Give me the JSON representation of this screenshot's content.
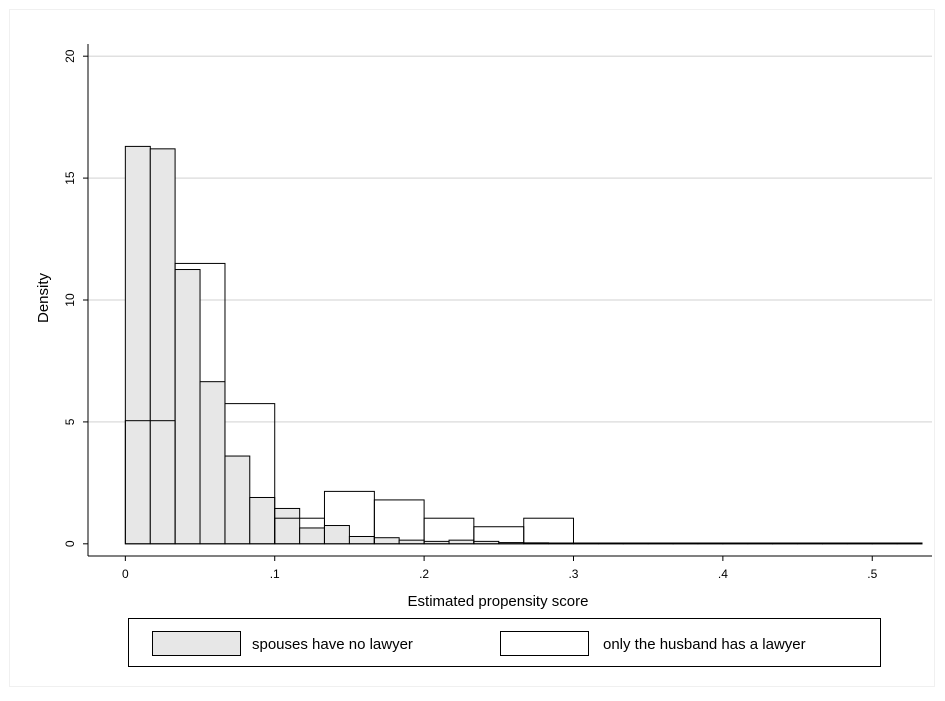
{
  "chart_data": {
    "type": "bar",
    "subtype": "overlaid-histogram",
    "title": "",
    "xlabel": "Estimated propensity score",
    "ylabel": "Density",
    "xlim": [
      -0.025,
      0.54
    ],
    "ylim": [
      -0.5,
      20.5
    ],
    "x_ticks": [
      0,
      0.1,
      0.2,
      0.3,
      0.4,
      0.5
    ],
    "x_tick_labels": [
      "0",
      ".1",
      ".2",
      ".3",
      ".4",
      ".5"
    ],
    "y_ticks": [
      0,
      5,
      10,
      15,
      20
    ],
    "y_tick_labels": [
      "0",
      "5",
      "10",
      "15",
      "20"
    ],
    "grid": "horizontal",
    "legend_position": "bottom",
    "colors": {
      "plot_background": "#ffffff",
      "outer_background": "#ffffff",
      "gridline": "#e0e0e0",
      "series_fill_gray": "#e7e7e7",
      "series_fill_white": "#ffffff",
      "bar_edge": "#000000"
    },
    "series": [
      {
        "name": "spouses have no lawyer",
        "style": "gray",
        "bin_edges": [
          0,
          0.0167,
          0.0333,
          0.05,
          0.0667,
          0.0833,
          0.1,
          0.1167,
          0.1333,
          0.15,
          0.1667,
          0.1833,
          0.2,
          0.2167,
          0.2333,
          0.25,
          0.2667,
          0.2833,
          0.3,
          0.3167,
          0.3333,
          0.35,
          0.3667,
          0.3833,
          0.4,
          0.4167,
          0.4333,
          0.45,
          0.4667,
          0.4833,
          0.5,
          0.5167,
          0.5333
        ],
        "values": [
          16.3,
          16.2,
          11.25,
          6.65,
          3.6,
          1.9,
          1.45,
          0.65,
          0.75,
          0.3,
          0.25,
          0.15,
          0.1,
          0.15,
          0.1,
          0.05,
          0.04,
          0.03,
          0.02,
          0.02,
          0.01,
          0.01,
          0.01,
          0.01,
          0.01,
          0.01,
          0.01,
          0.01,
          0.01,
          0.01,
          0.01,
          0.01
        ]
      },
      {
        "name": "only the husband has a lawyer",
        "style": "white",
        "bin_edges": [
          0,
          0.0333,
          0.0667,
          0.1,
          0.1333,
          0.1667,
          0.2,
          0.2333,
          0.2667,
          0.3,
          0.3333,
          0.3667,
          0.4,
          0.4333,
          0.4667,
          0.5,
          0.5333
        ],
        "values": [
          5.05,
          11.5,
          5.75,
          1.05,
          2.15,
          1.8,
          1.05,
          0.7,
          1.05,
          0.02,
          0.02,
          0.02,
          0.02,
          0.02,
          0.02,
          0.02
        ]
      }
    ]
  }
}
